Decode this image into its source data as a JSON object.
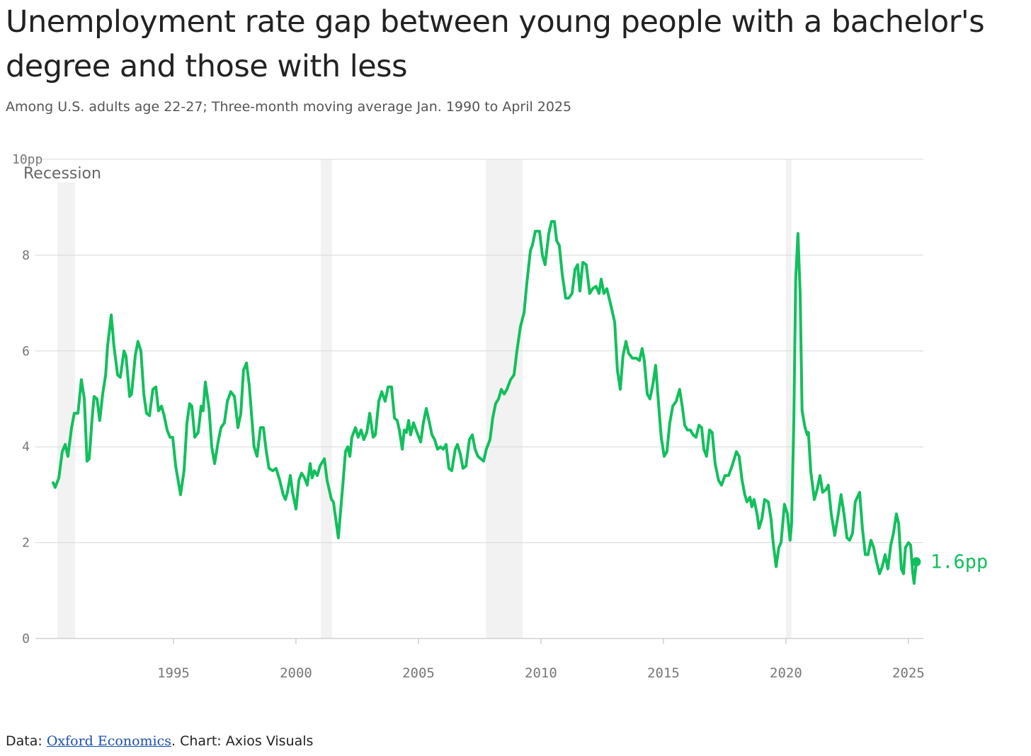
{
  "chart_data": {
    "type": "line",
    "title": "Unemployment rate gap between young people with a bachelor's degree and those with less",
    "subtitle": "Among U.S. adults age 22-27; Three-month moving average Jan. 1990 to April 2025",
    "x": [
      1990.09,
      1990.17,
      1990.32,
      1990.46,
      1990.58,
      1990.69,
      1990.84,
      1990.95,
      1991.1,
      1991.24,
      1991.36,
      1991.47,
      1991.56,
      1991.68,
      1991.76,
      1991.88,
      1991.99,
      1992.11,
      1992.23,
      1992.31,
      1992.46,
      1992.57,
      1992.72,
      1992.83,
      1992.98,
      1993.06,
      1993.21,
      1993.29,
      1993.44,
      1993.55,
      1993.67,
      1993.79,
      1993.9,
      1994.02,
      1994.16,
      1994.28,
      1994.39,
      1994.51,
      1994.62,
      1994.74,
      1994.86,
      1994.97,
      1995.09,
      1995.29,
      1995.43,
      1995.55,
      1995.66,
      1995.75,
      1995.87,
      1996.01,
      1996.13,
      1996.21,
      1996.3,
      1996.45,
      1996.56,
      1996.68,
      1996.82,
      1996.94,
      1997.08,
      1997.2,
      1997.34,
      1997.49,
      1997.63,
      1997.75,
      1997.86,
      1997.98,
      1998.09,
      1998.29,
      1998.41,
      1998.55,
      1998.67,
      1998.79,
      1998.9,
      1999.05,
      1999.19,
      1999.34,
      1999.48,
      1999.57,
      1999.65,
      1999.77,
      1999.86,
      2000.0,
      2000.12,
      2000.23,
      2000.35,
      2000.46,
      2000.58,
      2000.66,
      2000.75,
      2000.87,
      2000.98,
      2001.16,
      2001.27,
      2001.45,
      2001.53,
      2001.73,
      2001.91,
      2002.02,
      2002.11,
      2002.2,
      2002.28,
      2002.43,
      2002.54,
      2002.66,
      2002.77,
      2002.89,
      2003.01,
      2003.15,
      2003.24,
      2003.38,
      2003.5,
      2003.64,
      2003.76,
      2003.9,
      2004.02,
      2004.13,
      2004.22,
      2004.34,
      2004.42,
      2004.51,
      2004.6,
      2004.68,
      2004.8,
      2004.94,
      2005.09,
      2005.2,
      2005.32,
      2005.43,
      2005.55,
      2005.66,
      2005.78,
      2005.9,
      2006.01,
      2006.13,
      2006.24,
      2006.36,
      2006.5,
      2006.59,
      2006.71,
      2006.82,
      2006.94,
      2007.08,
      2007.2,
      2007.31,
      2007.43,
      2007.66,
      2007.77,
      2007.92,
      2008.03,
      2008.15,
      2008.27,
      2008.38,
      2008.5,
      2008.61,
      2008.76,
      2008.9,
      2009.02,
      2009.16,
      2009.31,
      2009.42,
      2009.57,
      2009.65,
      2009.77,
      2009.94,
      2010.06,
      2010.17,
      2010.32,
      2010.43,
      2010.55,
      2010.64,
      2010.75,
      2010.87,
      2011.01,
      2011.13,
      2011.27,
      2011.39,
      2011.5,
      2011.59,
      2011.71,
      2011.85,
      2011.99,
      2012.11,
      2012.25,
      2012.37,
      2012.46,
      2012.57,
      2012.69,
      2012.83,
      2013.01,
      2013.12,
      2013.24,
      2013.35,
      2013.47,
      2013.58,
      2013.73,
      2013.9,
      2014.02,
      2014.13,
      2014.22,
      2014.34,
      2014.45,
      2014.57,
      2014.68,
      2014.8,
      2014.91,
      2015.03,
      2015.14,
      2015.26,
      2015.38,
      2015.52,
      2015.66,
      2015.78,
      2015.87,
      2015.98,
      2016.1,
      2016.21,
      2016.33,
      2016.45,
      2016.56,
      2016.65,
      2016.76,
      2016.88,
      2016.99,
      2017.11,
      2017.25,
      2017.37,
      2017.51,
      2017.66,
      2017.8,
      2017.98,
      2018.09,
      2018.21,
      2018.32,
      2018.41,
      2018.53,
      2018.61,
      2018.7,
      2018.82,
      2018.9,
      2019.02,
      2019.13,
      2019.28,
      2019.39,
      2019.48,
      2019.6,
      2019.71,
      2019.8,
      2019.94,
      2020.06,
      2020.17,
      2020.23,
      2020.32,
      2020.4,
      2020.49,
      2020.58,
      2020.66,
      2020.78,
      2020.87,
      2020.92,
      2021.01,
      2021.16,
      2021.27,
      2021.39,
      2021.5,
      2021.62,
      2021.73,
      2021.85,
      2021.99,
      2022.14,
      2022.25,
      2022.37,
      2022.49,
      2022.6,
      2022.72,
      2022.83,
      2023.01,
      2023.12,
      2023.24,
      2023.35,
      2023.47,
      2023.58,
      2023.7,
      2023.82,
      2023.93,
      2024.05,
      2024.16,
      2024.28,
      2024.39,
      2024.51,
      2024.6,
      2024.71,
      2024.8,
      2024.88,
      2025.0,
      2025.09,
      2025.17,
      2025.23,
      2025.32
    ],
    "series": [
      {
        "color": "#12bf5d",
        "values": [
          3.25,
          3.15,
          3.35,
          3.9,
          4.05,
          3.8,
          4.4,
          4.7,
          4.7,
          5.4,
          5.0,
          3.7,
          3.75,
          4.6,
          5.05,
          5.0,
          4.55,
          5.1,
          5.5,
          6.1,
          6.75,
          6.1,
          5.5,
          5.45,
          6.0,
          5.9,
          5.05,
          5.1,
          5.9,
          6.2,
          6.0,
          5.1,
          4.7,
          4.65,
          5.2,
          5.25,
          4.75,
          4.85,
          4.65,
          4.35,
          4.2,
          4.2,
          3.6,
          3.0,
          3.5,
          4.5,
          4.9,
          4.85,
          4.2,
          4.3,
          4.85,
          4.75,
          5.35,
          4.8,
          4.0,
          3.65,
          4.1,
          4.4,
          4.5,
          4.95,
          5.15,
          5.05,
          4.4,
          4.7,
          5.6,
          5.75,
          5.3,
          4.0,
          3.8,
          4.4,
          4.4,
          3.9,
          3.55,
          3.5,
          3.55,
          3.3,
          3.0,
          2.9,
          3.05,
          3.4,
          3.05,
          2.7,
          3.3,
          3.45,
          3.35,
          3.2,
          3.65,
          3.35,
          3.5,
          3.4,
          3.6,
          3.75,
          3.3,
          2.9,
          2.85,
          2.1,
          3.2,
          3.9,
          4.0,
          3.8,
          4.2,
          4.4,
          4.2,
          4.35,
          4.15,
          4.3,
          4.7,
          4.2,
          4.25,
          4.95,
          5.15,
          4.95,
          5.25,
          5.25,
          4.6,
          4.55,
          4.35,
          3.95,
          4.35,
          4.3,
          4.55,
          4.25,
          4.5,
          4.3,
          4.1,
          4.5,
          4.8,
          4.55,
          4.25,
          4.15,
          3.95,
          4.0,
          3.95,
          4.05,
          3.55,
          3.5,
          3.95,
          4.05,
          3.85,
          3.55,
          3.6,
          4.15,
          4.25,
          3.95,
          3.8,
          3.7,
          3.95,
          4.15,
          4.6,
          4.9,
          5.0,
          5.2,
          5.1,
          5.2,
          5.4,
          5.5,
          6.0,
          6.5,
          6.8,
          7.4,
          8.1,
          8.2,
          8.5,
          8.5,
          8.0,
          7.8,
          8.45,
          8.7,
          8.7,
          8.3,
          8.2,
          7.6,
          7.1,
          7.1,
          7.2,
          7.7,
          7.8,
          7.25,
          7.85,
          7.8,
          7.2,
          7.3,
          7.35,
          7.2,
          7.5,
          7.2,
          7.3,
          7.0,
          6.6,
          5.6,
          5.2,
          5.9,
          6.2,
          5.95,
          5.85,
          5.85,
          5.8,
          6.05,
          5.8,
          5.1,
          5.0,
          5.3,
          5.7,
          4.9,
          4.2,
          3.8,
          3.9,
          4.5,
          4.85,
          4.95,
          5.2,
          4.8,
          4.45,
          4.35,
          4.35,
          4.25,
          4.2,
          4.45,
          4.4,
          3.95,
          3.8,
          4.35,
          4.3,
          3.65,
          3.3,
          3.2,
          3.4,
          3.4,
          3.6,
          3.9,
          3.8,
          3.3,
          3.0,
          2.85,
          2.95,
          2.75,
          2.9,
          2.6,
          2.3,
          2.5,
          2.9,
          2.85,
          2.5,
          2.0,
          1.5,
          1.9,
          2.0,
          2.8,
          2.6,
          2.05,
          2.4,
          4.5,
          7.5,
          8.45,
          7.2,
          4.75,
          4.4,
          4.25,
          4.3,
          3.5,
          2.9,
          3.1,
          3.4,
          3.05,
          3.1,
          3.2,
          2.6,
          2.15,
          2.6,
          3.0,
          2.6,
          2.1,
          2.05,
          2.2,
          2.85,
          3.05,
          2.3,
          1.75,
          1.75,
          2.05,
          1.9,
          1.6,
          1.35,
          1.5,
          1.75,
          1.45,
          1.95,
          2.2,
          2.6,
          2.4,
          1.45,
          1.35,
          1.9,
          2.0,
          1.95,
          1.4,
          1.15,
          1.6
        ]
      }
    ],
    "end_label": "1.6pp",
    "xlim": [
      1990,
      2025.61
    ],
    "xticks": [
      1995,
      2000,
      2005,
      2010,
      2015,
      2020,
      2025
    ],
    "ylim": [
      0,
      10
    ],
    "yticks": [
      0,
      2,
      4,
      6,
      8,
      {
        "value": 10,
        "label": "10pp"
      }
    ],
    "grid": true,
    "recession_label": "Recession",
    "recession_color": "#f2f2f2",
    "recessions": [
      [
        1990.26,
        1990.98
      ],
      [
        2001.01,
        2001.47
      ],
      [
        2007.75,
        2009.25
      ],
      [
        2020.0,
        2020.23
      ]
    ],
    "source": {
      "prefix": "Data:",
      "link": "Oxford Economics",
      "suffix": ". Chart: Axios Visuals"
    }
  }
}
